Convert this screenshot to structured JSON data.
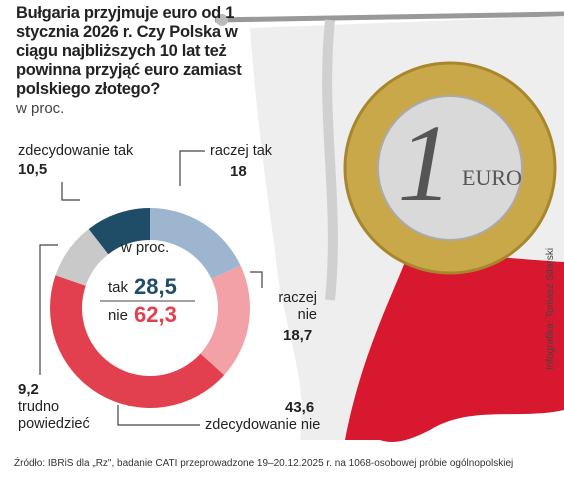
{
  "chart_data": {
    "type": "donut",
    "title": "Bułgaria przyjmuje euro od 1 stycznia 2026 r. Czy Polska w ciągu najbliższych 10 lat też powinna przyjąć euro zamiast polskiego złotego?",
    "subtitle": "w proc.",
    "categories": [
      "raczej tak",
      "raczej nie",
      "zdecydowanie nie",
      "trudno powiedzieć",
      "zdecydowanie tak"
    ],
    "values": [
      18,
      18.7,
      43.6,
      9.2,
      10.5
    ],
    "value_labels": [
      "18",
      "18,7",
      "43,6",
      "9,2",
      "10,5"
    ],
    "colors": [
      "#9db5cf",
      "#f2a2a7",
      "#e3404f",
      "#c9c9c9",
      "#1f4d68"
    ],
    "center_title": "w proc.",
    "summary": {
      "labels": [
        "tak",
        "nie"
      ],
      "values": [
        28.5,
        62.3
      ],
      "value_labels": [
        "28,5",
        "62,3"
      ],
      "colors": [
        "#1f4d68",
        "#e3404f"
      ]
    },
    "image_text": [
      "1",
      "EURO"
    ],
    "credit": "Infografika: Tomasz Sitarski",
    "source": "Źródło: IBRiS dla „Rz\", badanie CATI przeprowadzone 19–20.12.2025 r. na 1068-osobowej próbie ogólnopolskiej"
  }
}
